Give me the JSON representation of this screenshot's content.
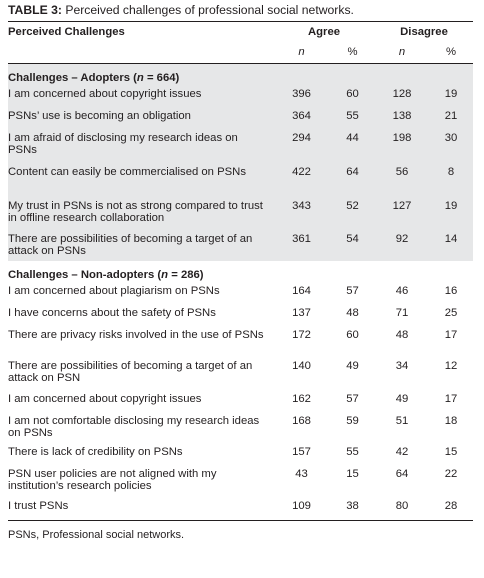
{
  "caption": {
    "label": "TABLE 3:",
    "text": "Perceived challenges of professional social networks."
  },
  "header": {
    "col_label": "Perceived Challenges",
    "agree": "Agree",
    "disagree": "Disagree",
    "n": "n",
    "pct": "%"
  },
  "sections": [
    {
      "title_prefix": "Challenges – Adopters (",
      "title_n": "n",
      "title_suffix": " = 664)",
      "shaded": true,
      "rows": [
        {
          "label": "I am concerned about copyright issues",
          "agree_n": "396",
          "agree_pct": "60",
          "disagree_n": "128",
          "disagree_pct": "19"
        },
        {
          "label": "PSNs’ use is becoming an obligation",
          "agree_n": "364",
          "agree_pct": "55",
          "disagree_n": "138",
          "disagree_pct": "21"
        },
        {
          "label": "I am afraid of disclosing my research ideas on PSNs",
          "agree_n": "294",
          "agree_pct": "44",
          "disagree_n": "198",
          "disagree_pct": "30"
        },
        {
          "label": "Content can easily be commercialised on PSNs",
          "agree_n": "422",
          "agree_pct": "64",
          "disagree_n": "56",
          "disagree_pct": "8"
        },
        {
          "label": "My trust in PSNs is not as strong compared to trust in offline research collaboration",
          "agree_n": "343",
          "agree_pct": "52",
          "disagree_n": "127",
          "disagree_pct": "19"
        },
        {
          "label": "There are possibilities of becoming a target of an attack on PSNs",
          "agree_n": "361",
          "agree_pct": "54",
          "disagree_n": "92",
          "disagree_pct": "14"
        }
      ]
    },
    {
      "title_prefix": "Challenges – Non-adopters (",
      "title_n": "n",
      "title_suffix": " = 286)",
      "shaded": false,
      "rows": [
        {
          "label": "I am concerned about plagiarism on PSNs",
          "agree_n": "164",
          "agree_pct": "57",
          "disagree_n": "46",
          "disagree_pct": "16"
        },
        {
          "label": "I have concerns about the safety of PSNs",
          "agree_n": "137",
          "agree_pct": "48",
          "disagree_n": "71",
          "disagree_pct": "25"
        },
        {
          "label": "There are privacy risks involved in the use of PSNs",
          "agree_n": "172",
          "agree_pct": "60",
          "disagree_n": "48",
          "disagree_pct": "17"
        },
        {
          "label": "There are possibilities of becoming a target of an attack on PSN",
          "agree_n": "140",
          "agree_pct": "49",
          "disagree_n": "34",
          "disagree_pct": "12"
        },
        {
          "label": "I am concerned about copyright issues",
          "agree_n": "162",
          "agree_pct": "57",
          "disagree_n": "49",
          "disagree_pct": "17"
        },
        {
          "label": "I am not comfortable disclosing my research ideas on PSNs",
          "agree_n": "168",
          "agree_pct": "59",
          "disagree_n": "51",
          "disagree_pct": "18"
        },
        {
          "label": "There is lack of credibility on PSNs",
          "agree_n": "157",
          "agree_pct": "55",
          "disagree_n": "42",
          "disagree_pct": "15"
        },
        {
          "label": "PSN user policies are not aligned with my institution’s research policies",
          "agree_n": "43",
          "agree_pct": "15",
          "disagree_n": "64",
          "disagree_pct": "22"
        },
        {
          "label": "I trust PSNs",
          "agree_n": "109",
          "agree_pct": "38",
          "disagree_n": "80",
          "disagree_pct": "28"
        }
      ]
    }
  ],
  "footnote": "PSNs, Professional social networks."
}
